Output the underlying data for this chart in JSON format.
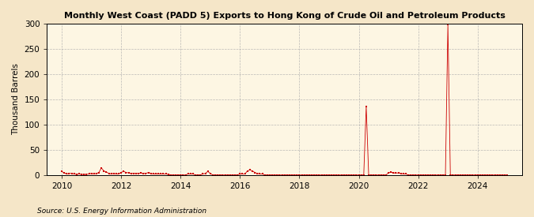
{
  "title": "Monthly West Coast (PADD 5) Exports to Hong Kong of Crude Oil and Petroleum Products",
  "ylabel": "Thousand Barrels",
  "source": "Source: U.S. Energy Information Administration",
  "background_color": "#f5e6c8",
  "plot_background_color": "#fdf6e3",
  "line_color": "#cc0000",
  "marker_color": "#cc0000",
  "xlim_start": 2009.5,
  "xlim_end": 2025.5,
  "ylim": [
    0,
    300
  ],
  "yticks": [
    0,
    50,
    100,
    150,
    200,
    250,
    300
  ],
  "xticks": [
    2010,
    2012,
    2014,
    2016,
    2018,
    2020,
    2022,
    2024
  ],
  "data": [
    [
      2010.0,
      7
    ],
    [
      2010.083,
      4
    ],
    [
      2010.167,
      2
    ],
    [
      2010.25,
      3
    ],
    [
      2010.333,
      3
    ],
    [
      2010.417,
      2
    ],
    [
      2010.5,
      1
    ],
    [
      2010.583,
      2
    ],
    [
      2010.667,
      1
    ],
    [
      2010.75,
      1
    ],
    [
      2010.833,
      1
    ],
    [
      2010.917,
      2
    ],
    [
      2011.0,
      3
    ],
    [
      2011.083,
      2
    ],
    [
      2011.167,
      3
    ],
    [
      2011.25,
      5
    ],
    [
      2011.333,
      14
    ],
    [
      2011.417,
      8
    ],
    [
      2011.5,
      6
    ],
    [
      2011.583,
      3
    ],
    [
      2011.667,
      2
    ],
    [
      2011.75,
      3
    ],
    [
      2011.833,
      2
    ],
    [
      2011.917,
      2
    ],
    [
      2012.0,
      5
    ],
    [
      2012.083,
      7
    ],
    [
      2012.167,
      5
    ],
    [
      2012.25,
      4
    ],
    [
      2012.333,
      3
    ],
    [
      2012.417,
      3
    ],
    [
      2012.5,
      3
    ],
    [
      2012.583,
      3
    ],
    [
      2012.667,
      4
    ],
    [
      2012.75,
      3
    ],
    [
      2012.833,
      3
    ],
    [
      2012.917,
      5
    ],
    [
      2013.0,
      3
    ],
    [
      2013.083,
      2
    ],
    [
      2013.167,
      2
    ],
    [
      2013.25,
      2
    ],
    [
      2013.333,
      2
    ],
    [
      2013.417,
      2
    ],
    [
      2013.5,
      2
    ],
    [
      2013.583,
      1
    ],
    [
      2013.667,
      0
    ],
    [
      2013.75,
      0
    ],
    [
      2013.833,
      0
    ],
    [
      2013.917,
      0
    ],
    [
      2014.0,
      0
    ],
    [
      2014.083,
      0
    ],
    [
      2014.167,
      0
    ],
    [
      2014.25,
      2
    ],
    [
      2014.333,
      2
    ],
    [
      2014.417,
      2
    ],
    [
      2014.5,
      0
    ],
    [
      2014.583,
      0
    ],
    [
      2014.667,
      0
    ],
    [
      2014.75,
      2
    ],
    [
      2014.833,
      3
    ],
    [
      2014.917,
      7
    ],
    [
      2015.0,
      3
    ],
    [
      2015.083,
      0
    ],
    [
      2015.167,
      0
    ],
    [
      2015.25,
      0
    ],
    [
      2015.333,
      0
    ],
    [
      2015.417,
      0
    ],
    [
      2015.5,
      0
    ],
    [
      2015.583,
      0
    ],
    [
      2015.667,
      0
    ],
    [
      2015.75,
      0
    ],
    [
      2015.833,
      0
    ],
    [
      2015.917,
      0
    ],
    [
      2016.0,
      2
    ],
    [
      2016.083,
      2
    ],
    [
      2016.167,
      2
    ],
    [
      2016.25,
      8
    ],
    [
      2016.333,
      10
    ],
    [
      2016.417,
      8
    ],
    [
      2016.5,
      5
    ],
    [
      2016.583,
      3
    ],
    [
      2016.667,
      2
    ],
    [
      2016.75,
      2
    ],
    [
      2016.833,
      0
    ],
    [
      2016.917,
      0
    ],
    [
      2017.0,
      0
    ],
    [
      2017.083,
      0
    ],
    [
      2017.167,
      0
    ],
    [
      2017.25,
      0
    ],
    [
      2017.333,
      0
    ],
    [
      2017.417,
      0
    ],
    [
      2017.5,
      0
    ],
    [
      2017.583,
      0
    ],
    [
      2017.667,
      0
    ],
    [
      2017.75,
      0
    ],
    [
      2017.833,
      0
    ],
    [
      2017.917,
      0
    ],
    [
      2018.0,
      0
    ],
    [
      2018.083,
      0
    ],
    [
      2018.167,
      0
    ],
    [
      2018.25,
      0
    ],
    [
      2018.333,
      0
    ],
    [
      2018.417,
      0
    ],
    [
      2018.5,
      0
    ],
    [
      2018.583,
      0
    ],
    [
      2018.667,
      0
    ],
    [
      2018.75,
      0
    ],
    [
      2018.833,
      0
    ],
    [
      2018.917,
      0
    ],
    [
      2019.0,
      0
    ],
    [
      2019.083,
      0
    ],
    [
      2019.167,
      0
    ],
    [
      2019.25,
      0
    ],
    [
      2019.333,
      0
    ],
    [
      2019.417,
      0
    ],
    [
      2019.5,
      0
    ],
    [
      2019.583,
      0
    ],
    [
      2019.667,
      0
    ],
    [
      2019.75,
      0
    ],
    [
      2019.833,
      0
    ],
    [
      2019.917,
      0
    ],
    [
      2020.0,
      0
    ],
    [
      2020.083,
      0
    ],
    [
      2020.167,
      0
    ],
    [
      2020.25,
      136
    ],
    [
      2020.333,
      0
    ],
    [
      2020.417,
      0
    ],
    [
      2020.5,
      0
    ],
    [
      2020.583,
      0
    ],
    [
      2020.667,
      0
    ],
    [
      2020.75,
      0
    ],
    [
      2020.833,
      0
    ],
    [
      2020.917,
      0
    ],
    [
      2021.0,
      4
    ],
    [
      2021.083,
      6
    ],
    [
      2021.167,
      4
    ],
    [
      2021.25,
      4
    ],
    [
      2021.333,
      4
    ],
    [
      2021.417,
      3
    ],
    [
      2021.5,
      2
    ],
    [
      2021.583,
      2
    ],
    [
      2021.667,
      0
    ],
    [
      2021.75,
      0
    ],
    [
      2021.833,
      0
    ],
    [
      2021.917,
      0
    ],
    [
      2022.0,
      0
    ],
    [
      2022.083,
      0
    ],
    [
      2022.167,
      0
    ],
    [
      2022.25,
      0
    ],
    [
      2022.333,
      0
    ],
    [
      2022.417,
      0
    ],
    [
      2022.5,
      0
    ],
    [
      2022.583,
      0
    ],
    [
      2022.667,
      0
    ],
    [
      2022.75,
      0
    ],
    [
      2022.833,
      0
    ],
    [
      2022.917,
      0
    ],
    [
      2023.0,
      298
    ],
    [
      2023.083,
      0
    ],
    [
      2023.167,
      0
    ],
    [
      2023.25,
      0
    ],
    [
      2023.333,
      0
    ],
    [
      2023.417,
      0
    ],
    [
      2023.5,
      0
    ],
    [
      2023.583,
      0
    ],
    [
      2023.667,
      0
    ],
    [
      2023.75,
      0
    ],
    [
      2023.833,
      0
    ],
    [
      2023.917,
      0
    ],
    [
      2024.0,
      0
    ],
    [
      2024.083,
      0
    ],
    [
      2024.167,
      0
    ],
    [
      2024.25,
      0
    ],
    [
      2024.333,
      0
    ],
    [
      2024.417,
      0
    ],
    [
      2024.5,
      0
    ],
    [
      2024.583,
      0
    ],
    [
      2024.667,
      0
    ],
    [
      2024.75,
      0
    ],
    [
      2024.833,
      0
    ],
    [
      2024.917,
      0
    ],
    [
      2025.0,
      0
    ]
  ]
}
